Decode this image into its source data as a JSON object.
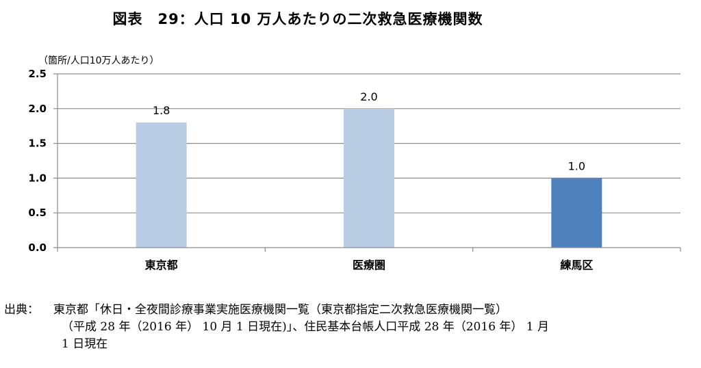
{
  "title": "図表　29：人口 10 万人あたりの二次救急医療機関数",
  "unit_label": "（箇所/人口10万人あたり）",
  "chart_data": {
    "type": "bar",
    "categories": [
      "東京都",
      "医療圏",
      "練馬区"
    ],
    "values": [
      1.8,
      2.0,
      1.0
    ],
    "value_labels": [
      "1.8",
      "2.0",
      "1.0"
    ],
    "ylim": [
      0,
      2.5
    ],
    "yticks": [
      0,
      0.5,
      1.0,
      1.5,
      2.0,
      2.5
    ],
    "ytick_labels": [
      "0.0",
      "0.5",
      "1.0",
      "1.5",
      "2.0",
      "2.5"
    ],
    "bar_colors": [
      "#b9cde5",
      "#b9cde5",
      "#4f81bd"
    ],
    "grid": true,
    "legend": false
  },
  "source": {
    "label": "出典：",
    "lines": [
      "東京都「休日・全夜間診療事業実施医療機関一覧（東京都指定二次救急医療機関一覧）",
      "（平成 28 年（2016 年） 10 月 1 日現在)」、住民基本台帳人口平成 28 年（2016 年） 1 月",
      "1 日現在"
    ]
  }
}
